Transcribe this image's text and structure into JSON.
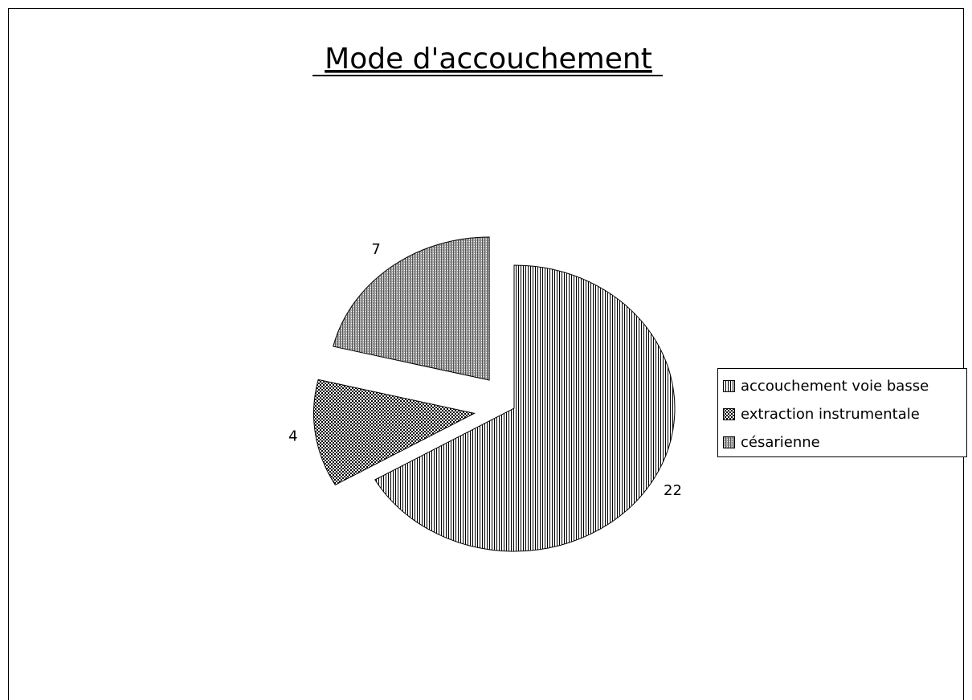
{
  "chart_data": {
    "type": "pie",
    "title": "Mode d'accouchement",
    "categories": [
      "accouchement voie basse",
      "extraction instrumentale",
      "césarienne"
    ],
    "values": [
      22,
      4,
      7
    ],
    "patterns": [
      "vertical",
      "crosshatch",
      "dense"
    ],
    "explode": [
      false,
      true,
      true
    ],
    "legend": "right"
  }
}
